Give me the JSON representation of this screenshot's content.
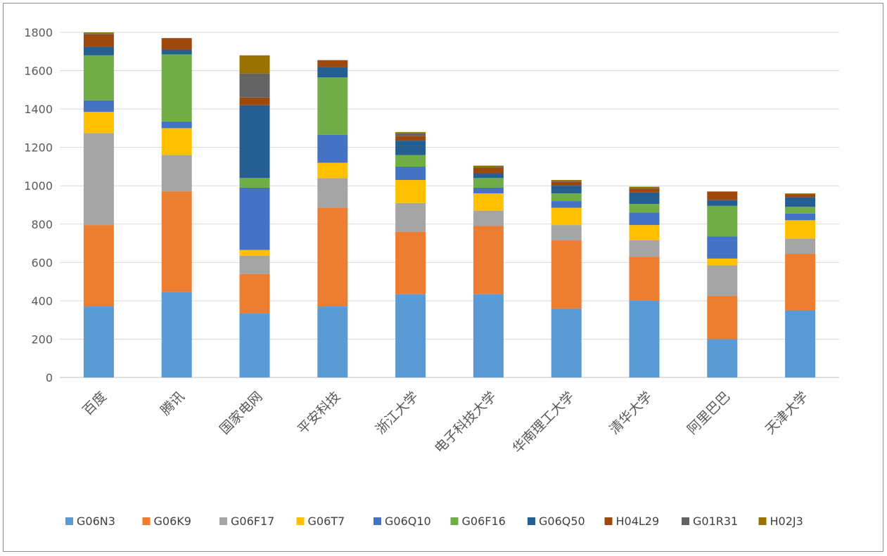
{
  "chart_data": {
    "type": "bar",
    "stacked": true,
    "title": "",
    "xlabel": "",
    "ylabel": "",
    "ylim": [
      0,
      1800
    ],
    "yticks": [
      0,
      200,
      400,
      600,
      800,
      1000,
      1200,
      1400,
      1600,
      1800
    ],
    "grid": true,
    "legend": "bottom",
    "categories": [
      "百度",
      "腾讯",
      "国家电网",
      "平安科技",
      "浙江大学",
      "电子科技大学",
      "华南理工大学",
      "清华大学",
      "阿里巴巴",
      "天津大学"
    ],
    "series": [
      {
        "name": "G06N3",
        "color": "#5b9bd5",
        "values": [
          370,
          445,
          335,
          370,
          435,
          435,
          360,
          400,
          200,
          350
        ]
      },
      {
        "name": "G06K9",
        "color": "#ed7d31",
        "values": [
          425,
          525,
          205,
          515,
          325,
          355,
          355,
          230,
          225,
          295
        ]
      },
      {
        "name": "G06F17",
        "color": "#a5a5a5",
        "values": [
          480,
          190,
          95,
          155,
          150,
          80,
          80,
          85,
          160,
          80
        ]
      },
      {
        "name": "G06T7",
        "color": "#ffc000",
        "values": [
          110,
          140,
          30,
          80,
          120,
          90,
          90,
          80,
          35,
          95
        ]
      },
      {
        "name": "G06Q10",
        "color": "#4472c4",
        "values": [
          60,
          35,
          325,
          145,
          70,
          30,
          35,
          65,
          115,
          35
        ]
      },
      {
        "name": "G06F16",
        "color": "#70ad47",
        "values": [
          235,
          350,
          50,
          300,
          60,
          50,
          40,
          45,
          160,
          35
        ]
      },
      {
        "name": "G06Q50",
        "color": "#255e91",
        "values": [
          45,
          25,
          380,
          55,
          75,
          25,
          40,
          60,
          30,
          50
        ]
      },
      {
        "name": "H04L29",
        "color": "#9e480e",
        "values": [
          65,
          60,
          40,
          35,
          25,
          30,
          20,
          20,
          45,
          15
        ]
      },
      {
        "name": "G01R31",
        "color": "#636363",
        "values": [
          5,
          0,
          125,
          0,
          15,
          5,
          5,
          5,
          0,
          0
        ]
      },
      {
        "name": "H02J3",
        "color": "#997300",
        "values": [
          5,
          0,
          95,
          0,
          5,
          5,
          5,
          5,
          0,
          5
        ]
      }
    ]
  }
}
